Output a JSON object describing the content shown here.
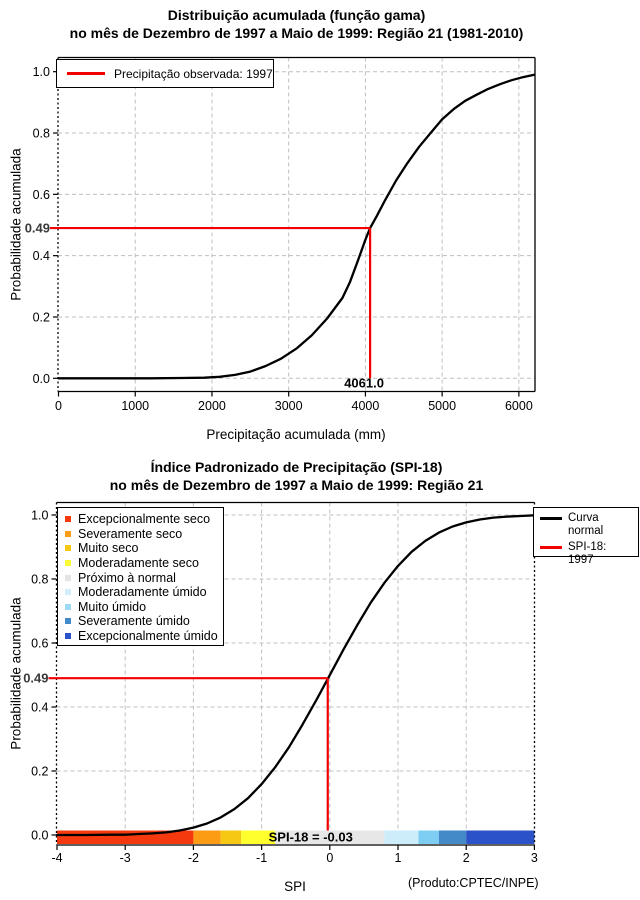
{
  "page": {
    "background": "#ffffff"
  },
  "chart_data": [
    {
      "type": "line",
      "title_line1": "Distribuição acumulada (função gama)",
      "title_line2": "no mês de Dezembro de 1997 a Maio de 1999: Região 21 (1981-2010)",
      "xlabel": "Precipitação acumulada (mm)",
      "ylabel": "Probabilidade acumulada",
      "xlim": [
        0,
        6200
      ],
      "ylim": [
        0,
        1
      ],
      "grid": true,
      "xticks": [
        0,
        1000,
        2000,
        3000,
        4000,
        5000,
        6000
      ],
      "yticks": [
        0,
        0.2,
        0.4,
        0.6,
        0.8,
        1.0
      ],
      "ytick_labels": [
        "0.0",
        "0.2",
        "0.4",
        "0.6",
        "0.8",
        "1.0"
      ],
      "legend": {
        "position": "top-left",
        "items": [
          {
            "label": "Precipitação observada: 1997",
            "color": "#f20000",
            "type": "line"
          }
        ]
      },
      "series": [
        {
          "name": "gamma-cdf",
          "color": "#000000",
          "points": [
            [
              0,
              0
            ],
            [
              600,
              0
            ],
            [
              1200,
              0
            ],
            [
              1600,
              0.001
            ],
            [
              1900,
              0.002
            ],
            [
              2100,
              0.005
            ],
            [
              2300,
              0.011
            ],
            [
              2500,
              0.022
            ],
            [
              2700,
              0.04
            ],
            [
              2900,
              0.064
            ],
            [
              3100,
              0.097
            ],
            [
              3300,
              0.14
            ],
            [
              3500,
              0.195
            ],
            [
              3700,
              0.262
            ],
            [
              3800,
              0.315
            ],
            [
              3900,
              0.382
            ],
            [
              4000,
              0.452
            ],
            [
              4061,
              0.49
            ],
            [
              4150,
              0.53
            ],
            [
              4250,
              0.578
            ],
            [
              4400,
              0.645
            ],
            [
              4550,
              0.703
            ],
            [
              4700,
              0.755
            ],
            [
              4850,
              0.8
            ],
            [
              5000,
              0.845
            ],
            [
              5150,
              0.878
            ],
            [
              5300,
              0.905
            ],
            [
              5450,
              0.925
            ],
            [
              5600,
              0.944
            ],
            [
              5750,
              0.959
            ],
            [
              5900,
              0.972
            ],
            [
              6050,
              0.982
            ],
            [
              6200,
              0.99
            ]
          ]
        }
      ],
      "annotation": {
        "prob": 0.49,
        "prob_label": "0.49",
        "value": 4061.0,
        "value_label": "4061.0",
        "color": "#f20000"
      }
    },
    {
      "type": "line",
      "title_line1": "Índice Padronizado de Precipitação (SPI-18)",
      "title_line2": "no mês de Dezembro de 1997 a Maio de 1999: Região 21",
      "xlabel": "SPI",
      "ylabel": "Probabilidade acumulada",
      "xlim": [
        -4,
        3
      ],
      "ylim": [
        0,
        1
      ],
      "grid": true,
      "xticks": [
        -4,
        -3,
        -2,
        -1,
        0,
        1,
        2,
        3
      ],
      "yticks": [
        0,
        0.2,
        0.4,
        0.6,
        0.8,
        1.0
      ],
      "ytick_labels": [
        "0.0",
        "0.2",
        "0.4",
        "0.6",
        "0.8",
        "1.0"
      ],
      "category_legend": [
        {
          "label": "Excepcionalmente seco",
          "color": "#f5390f"
        },
        {
          "label": "Severamente seco",
          "color": "#fc9c14"
        },
        {
          "label": "Muito seco",
          "color": "#f6c713"
        },
        {
          "label": "Moderadamente seco",
          "color": "#fbfb35"
        },
        {
          "label": "Próximo à normal",
          "color": "#e4e4e4"
        },
        {
          "label": "Moderadamente úmido",
          "color": "#d2eefb"
        },
        {
          "label": "Muito úmido",
          "color": "#9ed9f6"
        },
        {
          "label": "Severamente úmido",
          "color": "#4489c8"
        },
        {
          "label": "Excepcionalmente úmido",
          "color": "#2b52c8"
        }
      ],
      "line_legend": [
        {
          "label": "Curva normal",
          "color": "#000000"
        },
        {
          "label": "SPI-18: 1997",
          "color": "#f20000"
        }
      ],
      "band": [
        {
          "from": -4,
          "to": -2,
          "color": "#f5390f"
        },
        {
          "from": -2,
          "to": -1.6,
          "color": "#fc9c14"
        },
        {
          "from": -1.6,
          "to": -1.3,
          "color": "#f6c713"
        },
        {
          "from": -1.3,
          "to": -0.8,
          "color": "#ffff2e"
        },
        {
          "from": -0.8,
          "to": 0.8,
          "color": "#e7e7e7"
        },
        {
          "from": 0.8,
          "to": 1.3,
          "color": "#cdedfa"
        },
        {
          "from": 1.3,
          "to": 1.6,
          "color": "#7ecdf2"
        },
        {
          "from": 1.6,
          "to": 2,
          "color": "#4489c8"
        },
        {
          "from": 2,
          "to": 3,
          "color": "#2b52c8"
        }
      ],
      "series": [
        {
          "name": "normal-cdf",
          "color": "#000000",
          "points": [
            [
              -4,
              0
            ],
            [
              -3.6,
              0
            ],
            [
              -3.2,
              0.001
            ],
            [
              -3,
              0.001
            ],
            [
              -2.8,
              0.003
            ],
            [
              -2.6,
              0.005
            ],
            [
              -2.4,
              0.008
            ],
            [
              -2.2,
              0.014
            ],
            [
              -2,
              0.023
            ],
            [
              -1.8,
              0.036
            ],
            [
              -1.6,
              0.055
            ],
            [
              -1.4,
              0.081
            ],
            [
              -1.2,
              0.115
            ],
            [
              -1,
              0.159
            ],
            [
              -0.8,
              0.212
            ],
            [
              -0.6,
              0.274
            ],
            [
              -0.4,
              0.345
            ],
            [
              -0.2,
              0.421
            ],
            [
              -0.03,
              0.488
            ],
            [
              0.2,
              0.579
            ],
            [
              0.4,
              0.655
            ],
            [
              0.6,
              0.726
            ],
            [
              0.8,
              0.788
            ],
            [
              1,
              0.841
            ],
            [
              1.2,
              0.885
            ],
            [
              1.4,
              0.919
            ],
            [
              1.6,
              0.945
            ],
            [
              1.8,
              0.964
            ],
            [
              2,
              0.977
            ],
            [
              2.2,
              0.986
            ],
            [
              2.4,
              0.992
            ],
            [
              2.6,
              0.995
            ],
            [
              2.8,
              0.997
            ],
            [
              3,
              0.999
            ]
          ]
        }
      ],
      "annotation": {
        "prob": 0.49,
        "prob_label": "0.49",
        "value": -0.03,
        "value_label": "SPI-18 = -0.03",
        "color": "#f20000"
      },
      "credit": "(Produto:CPTEC/INPE)"
    }
  ]
}
